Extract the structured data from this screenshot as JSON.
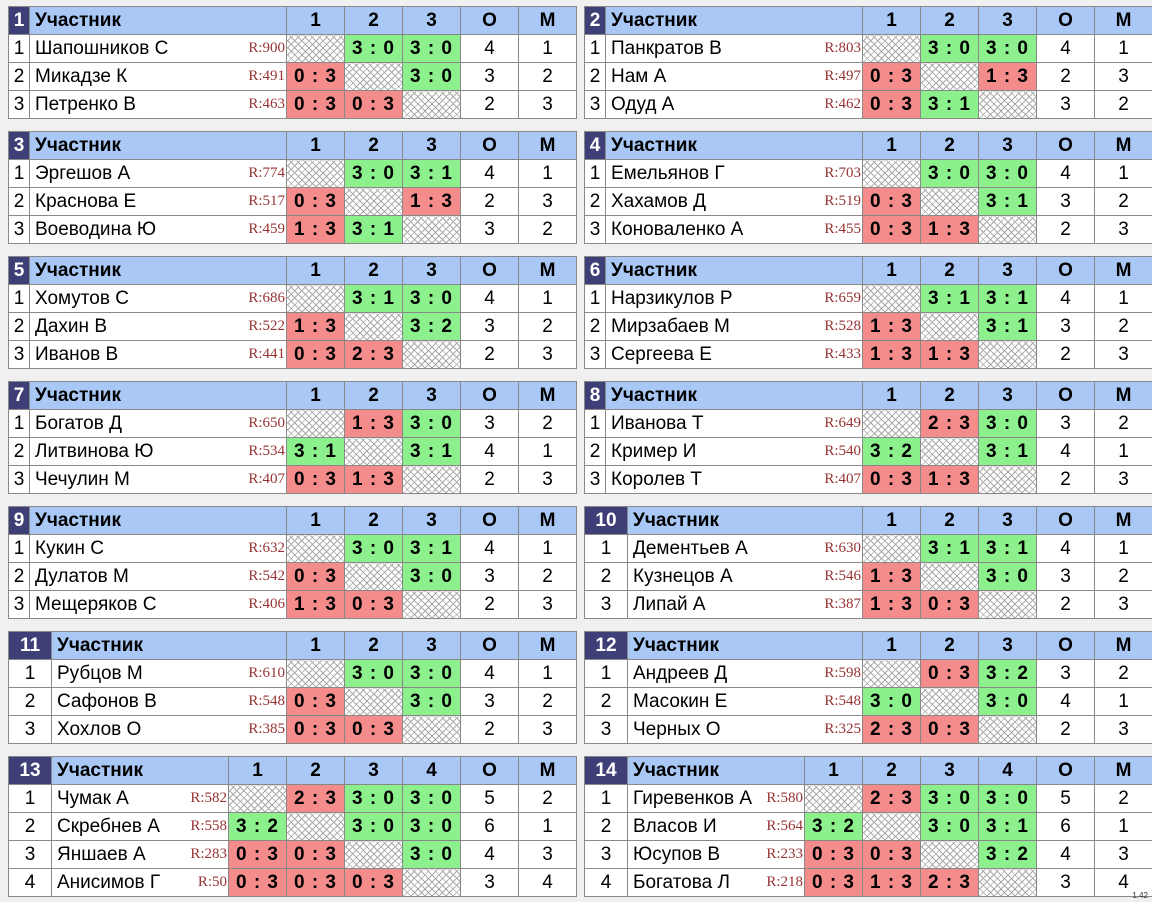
{
  "columns": {
    "participant": "Участник",
    "points": "О",
    "place": "М"
  },
  "groups": [
    {
      "no": "1",
      "size": 3,
      "players": [
        {
          "n": "1",
          "name": "Шапошников С",
          "r": "R:900",
          "s": [
            "",
            "3 : 0",
            "3 : 0"
          ],
          "o": "4",
          "m": "1"
        },
        {
          "n": "2",
          "name": "Микадзе К",
          "r": "R:491",
          "s": [
            "0 : 3",
            "",
            "3 : 0"
          ],
          "o": "3",
          "m": "2"
        },
        {
          "n": "3",
          "name": "Петренко В",
          "r": "R:463",
          "s": [
            "0 : 3",
            "0 : 3",
            ""
          ],
          "o": "2",
          "m": "3"
        }
      ]
    },
    {
      "no": "2",
      "size": 3,
      "players": [
        {
          "n": "1",
          "name": "Панкратов В",
          "r": "R:803",
          "s": [
            "",
            "3 : 0",
            "3 : 0"
          ],
          "o": "4",
          "m": "1"
        },
        {
          "n": "2",
          "name": "Нам А",
          "r": "R:497",
          "s": [
            "0 : 3",
            "",
            "1 : 3"
          ],
          "o": "2",
          "m": "3"
        },
        {
          "n": "3",
          "name": "Одуд А",
          "r": "R:462",
          "s": [
            "0 : 3",
            "3 : 1",
            ""
          ],
          "o": "3",
          "m": "2"
        }
      ]
    },
    {
      "no": "3",
      "size": 3,
      "players": [
        {
          "n": "1",
          "name": "Эргешов А",
          "r": "R:774",
          "s": [
            "",
            "3 : 0",
            "3 : 1"
          ],
          "o": "4",
          "m": "1"
        },
        {
          "n": "2",
          "name": "Краснова Е",
          "r": "R:517",
          "s": [
            "0 : 3",
            "",
            "1 : 3"
          ],
          "o": "2",
          "m": "3"
        },
        {
          "n": "3",
          "name": "Воеводина Ю",
          "r": "R:459",
          "s": [
            "1 : 3",
            "3 : 1",
            ""
          ],
          "o": "3",
          "m": "2"
        }
      ]
    },
    {
      "no": "4",
      "size": 3,
      "players": [
        {
          "n": "1",
          "name": "Емельянов Г",
          "r": "R:703",
          "s": [
            "",
            "3 : 0",
            "3 : 0"
          ],
          "o": "4",
          "m": "1"
        },
        {
          "n": "2",
          "name": "Хахамов Д",
          "r": "R:519",
          "s": [
            "0 : 3",
            "",
            "3 : 1"
          ],
          "o": "3",
          "m": "2"
        },
        {
          "n": "3",
          "name": "Коноваленко А",
          "r": "R:455",
          "s": [
            "0 : 3",
            "1 : 3",
            ""
          ],
          "o": "2",
          "m": "3"
        }
      ]
    },
    {
      "no": "5",
      "size": 3,
      "players": [
        {
          "n": "1",
          "name": "Хомутов С",
          "r": "R:686",
          "s": [
            "",
            "3 : 1",
            "3 : 0"
          ],
          "o": "4",
          "m": "1"
        },
        {
          "n": "2",
          "name": "Дахин В",
          "r": "R:522",
          "s": [
            "1 : 3",
            "",
            "3 : 2"
          ],
          "o": "3",
          "m": "2"
        },
        {
          "n": "3",
          "name": "Иванов В",
          "r": "R:441",
          "s": [
            "0 : 3",
            "2 : 3",
            ""
          ],
          "o": "2",
          "m": "3"
        }
      ]
    },
    {
      "no": "6",
      "size": 3,
      "players": [
        {
          "n": "1",
          "name": "Нарзикулов Р",
          "r": "R:659",
          "s": [
            "",
            "3 : 1",
            "3 : 1"
          ],
          "o": "4",
          "m": "1"
        },
        {
          "n": "2",
          "name": "Мирзабаев М",
          "r": "R:528",
          "s": [
            "1 : 3",
            "",
            "3 : 1"
          ],
          "o": "3",
          "m": "2"
        },
        {
          "n": "3",
          "name": "Сергеева Е",
          "r": "R:433",
          "s": [
            "1 : 3",
            "1 : 3",
            ""
          ],
          "o": "2",
          "m": "3"
        }
      ]
    },
    {
      "no": "7",
      "size": 3,
      "players": [
        {
          "n": "1",
          "name": "Богатов Д",
          "r": "R:650",
          "s": [
            "",
            "1 : 3",
            "3 : 0"
          ],
          "o": "3",
          "m": "2"
        },
        {
          "n": "2",
          "name": "Литвинова Ю",
          "r": "R:534",
          "s": [
            "3 : 1",
            "",
            "3 : 1"
          ],
          "o": "4",
          "m": "1"
        },
        {
          "n": "3",
          "name": "Чечулин М",
          "r": "R:407",
          "s": [
            "0 : 3",
            "1 : 3",
            ""
          ],
          "o": "2",
          "m": "3"
        }
      ]
    },
    {
      "no": "8",
      "size": 3,
      "players": [
        {
          "n": "1",
          "name": "Иванова Т",
          "r": "R:649",
          "s": [
            "",
            "2 : 3",
            "3 : 0"
          ],
          "o": "3",
          "m": "2"
        },
        {
          "n": "2",
          "name": "Кример И",
          "r": "R:540",
          "s": [
            "3 : 2",
            "",
            "3 : 1"
          ],
          "o": "4",
          "m": "1"
        },
        {
          "n": "3",
          "name": "Королев Т",
          "r": "R:407",
          "s": [
            "0 : 3",
            "1 : 3",
            ""
          ],
          "o": "2",
          "m": "3"
        }
      ]
    },
    {
      "no": "9",
      "size": 3,
      "players": [
        {
          "n": "1",
          "name": "Кукин С",
          "r": "R:632",
          "s": [
            "",
            "3 : 0",
            "3 : 1"
          ],
          "o": "4",
          "m": "1"
        },
        {
          "n": "2",
          "name": "Дулатов М",
          "r": "R:542",
          "s": [
            "0 : 3",
            "",
            "3 : 0"
          ],
          "o": "3",
          "m": "2"
        },
        {
          "n": "3",
          "name": "Мещеряков С",
          "r": "R:406",
          "s": [
            "1 : 3",
            "0 : 3",
            ""
          ],
          "o": "2",
          "m": "3"
        }
      ]
    },
    {
      "no": "10",
      "size": 3,
      "players": [
        {
          "n": "1",
          "name": "Дементьев А",
          "r": "R:630",
          "s": [
            "",
            "3 : 1",
            "3 : 1"
          ],
          "o": "4",
          "m": "1"
        },
        {
          "n": "2",
          "name": "Кузнецов А",
          "r": "R:546",
          "s": [
            "1 : 3",
            "",
            "3 : 0"
          ],
          "o": "3",
          "m": "2"
        },
        {
          "n": "3",
          "name": "Липай А",
          "r": "R:387",
          "s": [
            "1 : 3",
            "0 : 3",
            ""
          ],
          "o": "2",
          "m": "3"
        }
      ]
    },
    {
      "no": "11",
      "size": 3,
      "players": [
        {
          "n": "1",
          "name": "Рубцов М",
          "r": "R:610",
          "s": [
            "",
            "3 : 0",
            "3 : 0"
          ],
          "o": "4",
          "m": "1"
        },
        {
          "n": "2",
          "name": "Сафонов В",
          "r": "R:548",
          "s": [
            "0 : 3",
            "",
            "3 : 0"
          ],
          "o": "3",
          "m": "2"
        },
        {
          "n": "3",
          "name": "Хохлов О",
          "r": "R:385",
          "s": [
            "0 : 3",
            "0 : 3",
            ""
          ],
          "o": "2",
          "m": "3"
        }
      ]
    },
    {
      "no": "12",
      "size": 3,
      "players": [
        {
          "n": "1",
          "name": "Андреев Д",
          "r": "R:598",
          "s": [
            "",
            "0 : 3",
            "3 : 2"
          ],
          "o": "3",
          "m": "2"
        },
        {
          "n": "2",
          "name": "Масокин Е",
          "r": "R:548",
          "s": [
            "3 : 0",
            "",
            "3 : 0"
          ],
          "o": "4",
          "m": "1"
        },
        {
          "n": "3",
          "name": "Черных О",
          "r": "R:325",
          "s": [
            "2 : 3",
            "0 : 3",
            ""
          ],
          "o": "2",
          "m": "3"
        }
      ]
    },
    {
      "no": "13",
      "size": 4,
      "players": [
        {
          "n": "1",
          "name": "Чумак А",
          "r": "R:582",
          "s": [
            "",
            "2 : 3",
            "3 : 0",
            "3 : 0"
          ],
          "o": "5",
          "m": "2"
        },
        {
          "n": "2",
          "name": "Скребнев А",
          "r": "R:558",
          "s": [
            "3 : 2",
            "",
            "3 : 0",
            "3 : 0"
          ],
          "o": "6",
          "m": "1"
        },
        {
          "n": "3",
          "name": "Яншаев А",
          "r": "R:283",
          "s": [
            "0 : 3",
            "0 : 3",
            "",
            "3 : 0"
          ],
          "o": "4",
          "m": "3"
        },
        {
          "n": "4",
          "name": "Анисимов Г",
          "r": "R:50",
          "s": [
            "0 : 3",
            "0 : 3",
            "0 : 3",
            ""
          ],
          "o": "3",
          "m": "4"
        }
      ]
    },
    {
      "no": "14",
      "size": 4,
      "players": [
        {
          "n": "1",
          "name": "Гиревенков А",
          "r": "R:580",
          "s": [
            "",
            "2 : 3",
            "3 : 0",
            "3 : 0"
          ],
          "o": "5",
          "m": "2"
        },
        {
          "n": "2",
          "name": "Власов И",
          "r": "R:564",
          "s": [
            "3 : 2",
            "",
            "3 : 0",
            "3 : 1"
          ],
          "o": "6",
          "m": "1"
        },
        {
          "n": "3",
          "name": "Юсупов В",
          "r": "R:233",
          "s": [
            "0 : 3",
            "0 : 3",
            "",
            "3 : 2"
          ],
          "o": "4",
          "m": "3"
        },
        {
          "n": "4",
          "name": "Богатова Л",
          "r": "R:218",
          "s": [
            "0 : 3",
            "1 : 3",
            "2 : 3",
            ""
          ],
          "o": "3",
          "m": "4"
        }
      ]
    }
  ],
  "version": "1.42"
}
